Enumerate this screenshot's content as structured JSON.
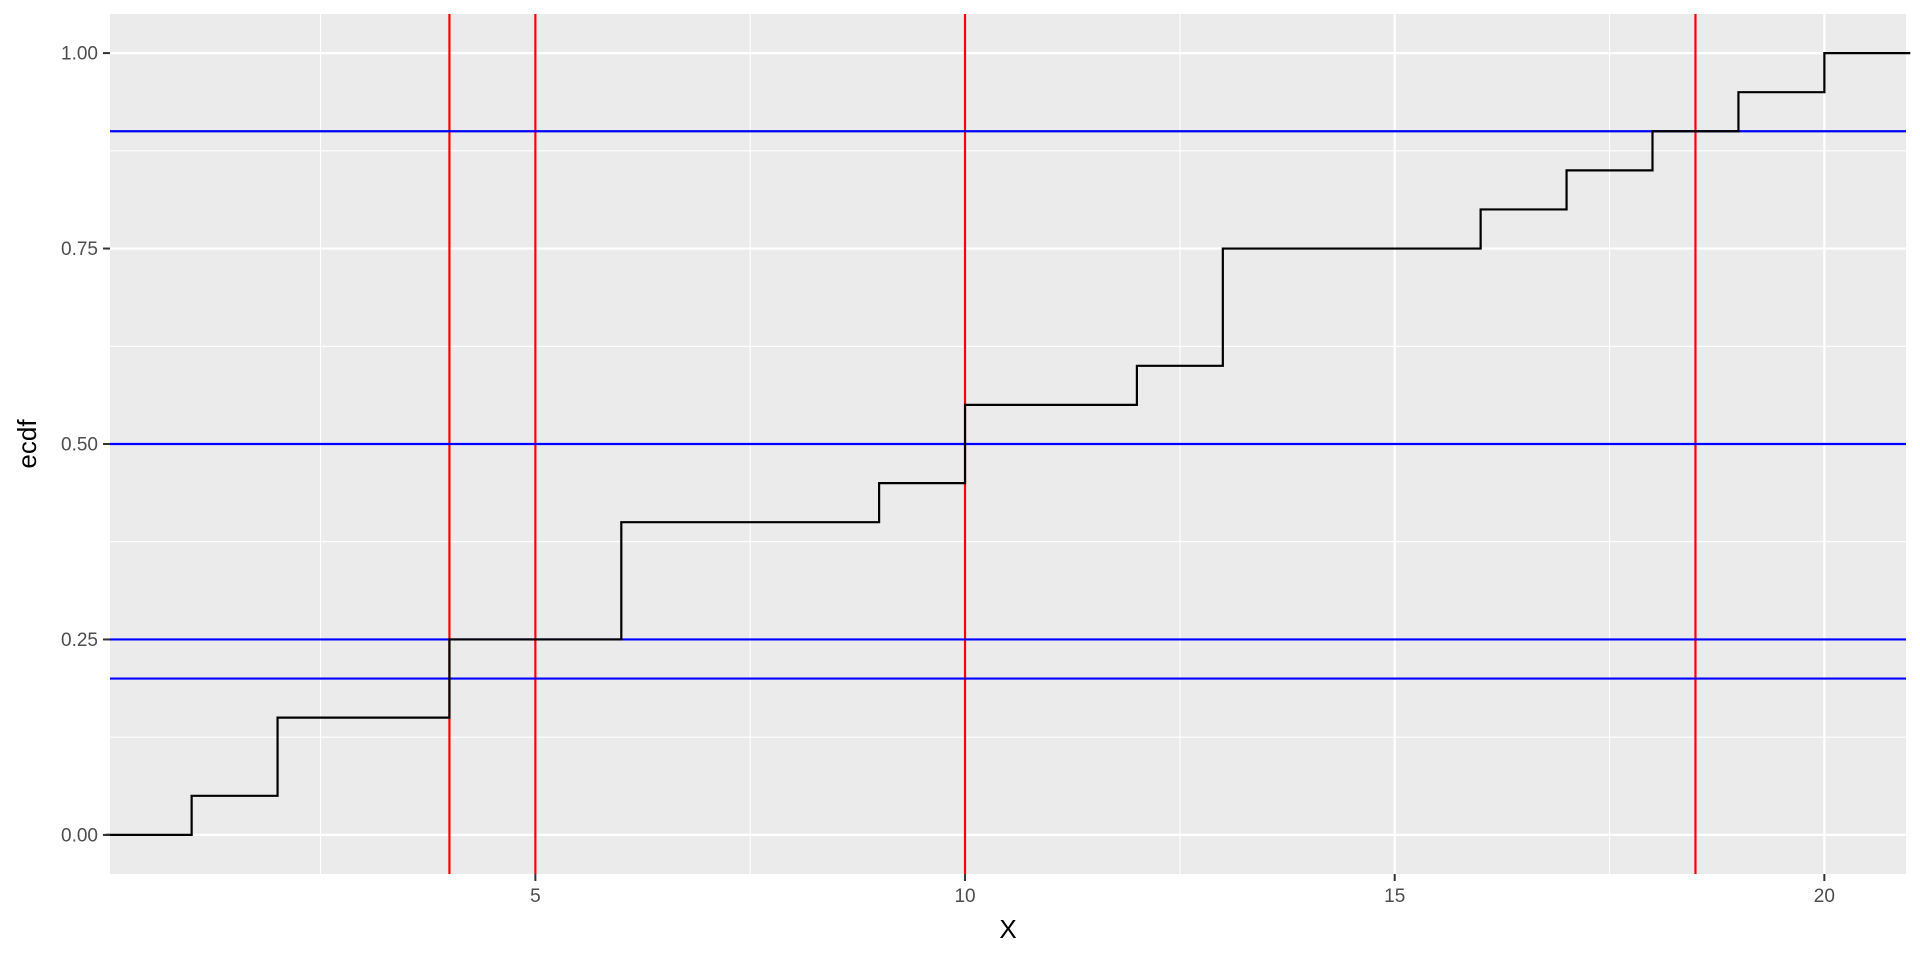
{
  "chart_data": {
    "type": "line",
    "subtype": "step",
    "xlabel": "X",
    "ylabel": "ecdf",
    "xlim": [
      0.05,
      20.95
    ],
    "ylim": [
      -0.05,
      1.05
    ],
    "x_ticks": [
      5,
      10,
      15,
      20
    ],
    "x_tick_labels": [
      "5",
      "10",
      "15",
      "20"
    ],
    "y_ticks": [
      0.0,
      0.25,
      0.5,
      0.75,
      1.0
    ],
    "y_tick_labels": [
      "0.00",
      "0.25",
      "0.50",
      "0.75",
      "1.00"
    ],
    "grid": true,
    "series": [
      {
        "color": "#000000",
        "x": [
          0,
          1,
          2,
          4,
          6,
          9,
          10,
          12,
          13,
          16,
          17,
          18,
          19,
          20,
          21
        ],
        "y": [
          0.0,
          0.05,
          0.15,
          0.25,
          0.4,
          0.45,
          0.55,
          0.6,
          0.75,
          0.8,
          0.85,
          0.9,
          0.95,
          1.0,
          1.0
        ]
      }
    ],
    "vlines": {
      "color": "#FF0000",
      "x": [
        4,
        5,
        10,
        18.5
      ]
    },
    "hlines": {
      "color": "#0000FF",
      "y": [
        0.2,
        0.25,
        0.5,
        0.9
      ]
    },
    "colors": {
      "panel_background": "#EBEBEB",
      "grid": "#FFFFFF",
      "tick_label": "#4D4D4D",
      "tick_mark": "#333333"
    }
  }
}
